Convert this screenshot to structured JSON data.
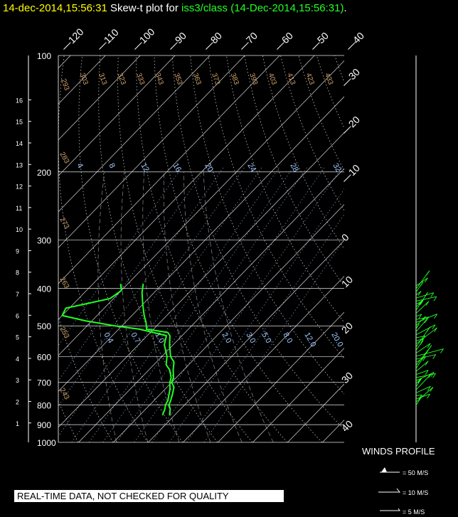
{
  "title": {
    "date": "14-dec-2014,15:56:31",
    "middle": " Skew-t plot for ",
    "source": "iss3/class",
    "paren": " (14-Dec-2014,15:56:31)",
    "dot": "."
  },
  "warning": "REAL-TIME DATA, NOT CHECKED FOR QUALITY",
  "winds": {
    "title": "WINDS PROFILE",
    "legend": [
      "= 50 M/S",
      "= 10 M/S",
      "= 5 M/S"
    ]
  },
  "colors": {
    "background": "#000000",
    "sounding": "#22ff22",
    "grid": "#c8c8c8",
    "isotherm": "#ffffff",
    "dry_adiabat_label": "#d2a46e",
    "mixing_ratio_label": "#9ec8ff"
  },
  "chart_data": {
    "type": "line",
    "subtype": "skew-t",
    "pressure_labels": [
      "100",
      "200",
      "300",
      "400",
      "500",
      "600",
      "700",
      "800",
      "900",
      "1000"
    ],
    "pressure_levels_hpa": [
      100,
      200,
      300,
      400,
      500,
      600,
      700,
      800,
      900,
      1000
    ],
    "height_labels_km": [
      "1",
      "2",
      "3",
      "4",
      "5",
      "6",
      "7",
      "8",
      "9",
      "10",
      "11",
      "12",
      "13",
      "14",
      "15",
      "16"
    ],
    "isotherm_labels_c": [
      "-120",
      "-110",
      "-100",
      "-90",
      "-80",
      "-70",
      "-60",
      "-50",
      "-40",
      "-30",
      "-20",
      "-10",
      "0",
      "10",
      "20",
      "30",
      "40"
    ],
    "dry_adiabat_labels_k": [
      "293",
      "303",
      "313",
      "323",
      "333",
      "343",
      "353",
      "363",
      "373",
      "383",
      "393",
      "403",
      "413",
      "423",
      "433",
      "283",
      "273",
      "263",
      "253",
      "243"
    ],
    "mixing_ratio_labels_top": [
      "4",
      "8",
      "12",
      "16",
      "20",
      "24",
      "28",
      "32"
    ],
    "mixing_ratio_labels_mid": [
      "0.4",
      "0.7",
      "1.0",
      "2.0",
      "3.0",
      "5.0",
      "8.0",
      "12.0",
      "20.0"
    ],
    "temperature_profile": [
      {
        "p": 850,
        "t": -1.5
      },
      {
        "p": 820,
        "t": -3.0
      },
      {
        "p": 800,
        "t": -4.5
      },
      {
        "p": 780,
        "t": -5.2
      },
      {
        "p": 750,
        "t": -6.5
      },
      {
        "p": 720,
        "t": -8.0
      },
      {
        "p": 700,
        "t": -10.0
      },
      {
        "p": 680,
        "t": -10.8
      },
      {
        "p": 650,
        "t": -13.0
      },
      {
        "p": 620,
        "t": -15.0
      },
      {
        "p": 600,
        "t": -17.5
      },
      {
        "p": 560,
        "t": -21.0
      },
      {
        "p": 530,
        "t": -23.5
      },
      {
        "p": 520,
        "t": -25.0
      },
      {
        "p": 510,
        "t": -32.0
      },
      {
        "p": 490,
        "t": -34.0
      },
      {
        "p": 470,
        "t": -36.5
      },
      {
        "p": 440,
        "t": -40.0
      },
      {
        "p": 410,
        "t": -43.5
      },
      {
        "p": 390,
        "t": -45.5
      }
    ],
    "dewpoint_profile": [
      {
        "p": 850,
        "t": -3.5
      },
      {
        "p": 820,
        "t": -4.5
      },
      {
        "p": 800,
        "t": -5.5
      },
      {
        "p": 780,
        "t": -6.0
      },
      {
        "p": 760,
        "t": -7.0
      },
      {
        "p": 730,
        "t": -8.5
      },
      {
        "p": 700,
        "t": -10.5
      },
      {
        "p": 680,
        "t": -11.5
      },
      {
        "p": 650,
        "t": -14.0
      },
      {
        "p": 630,
        "t": -16.5
      },
      {
        "p": 600,
        "t": -18.5
      },
      {
        "p": 560,
        "t": -22.5
      },
      {
        "p": 530,
        "t": -24.5
      },
      {
        "p": 510,
        "t": -34.0
      },
      {
        "p": 500,
        "t": -42.0
      },
      {
        "p": 485,
        "t": -52.0
      },
      {
        "p": 470,
        "t": -60.0
      },
      {
        "p": 450,
        "t": -61.0
      },
      {
        "p": 440,
        "t": -57.0
      },
      {
        "p": 425,
        "t": -51.0
      },
      {
        "p": 405,
        "t": -50.0
      },
      {
        "p": 390,
        "t": -52.0
      }
    ]
  }
}
